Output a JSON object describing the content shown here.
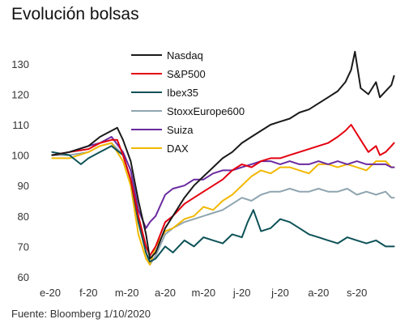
{
  "header": {
    "title": "Evolución bolsas"
  },
  "footer": {
    "source": "Fuente: Bloomberg 1/10/2020"
  },
  "chart_data": {
    "type": "line",
    "title": "Evolución bolsas",
    "xlabel": "",
    "ylabel": "",
    "ylim": [
      60,
      135
    ],
    "yticks": [
      60,
      70,
      80,
      90,
      100,
      110,
      120,
      130
    ],
    "x_tick_labels": [
      "e-20",
      "f-20",
      "m-20",
      "a-20",
      "m-20",
      "j-20",
      "j-20",
      "a-20",
      "s-20"
    ],
    "x_tick_months": [
      0,
      1,
      2,
      3,
      4,
      5,
      6,
      7,
      8
    ],
    "x_range_months": [
      0,
      9
    ],
    "grid": false,
    "legend_position": "top-center",
    "series": [
      {
        "name": "Nasdaq",
        "color": "#1a1a1a",
        "x": [
          0.05,
          0.5,
          1.0,
          1.3,
          1.6,
          1.75,
          1.9,
          2.1,
          2.3,
          2.5,
          2.6,
          2.75,
          3.0,
          3.2,
          3.5,
          3.75,
          4.0,
          4.25,
          4.5,
          4.75,
          5.0,
          5.25,
          5.5,
          5.75,
          6.0,
          6.25,
          6.5,
          6.75,
          7.0,
          7.25,
          7.5,
          7.7,
          7.85,
          7.95,
          8.1,
          8.3,
          8.5,
          8.6,
          8.75,
          8.9,
          8.97
        ],
        "y": [
          100,
          101,
          103,
          106,
          108,
          109,
          105,
          98,
          85,
          74,
          66,
          68,
          76,
          80,
          86,
          90,
          93,
          96,
          99,
          101,
          104,
          106,
          108,
          110,
          111,
          112,
          114,
          115,
          117,
          119,
          121,
          124,
          128,
          134,
          122,
          120,
          124,
          119,
          121,
          123,
          126
        ]
      },
      {
        "name": "S&P500",
        "color": "#e3000f",
        "x": [
          0.05,
          0.5,
          1.0,
          1.3,
          1.6,
          1.75,
          1.9,
          2.1,
          2.3,
          2.5,
          2.6,
          2.75,
          3.0,
          3.2,
          3.5,
          3.75,
          4.0,
          4.25,
          4.5,
          4.75,
          5.0,
          5.25,
          5.5,
          5.75,
          6.0,
          6.25,
          6.5,
          6.75,
          7.0,
          7.25,
          7.5,
          7.7,
          7.85,
          7.95,
          8.1,
          8.3,
          8.5,
          8.6,
          8.75,
          8.9,
          8.97
        ],
        "y": [
          100,
          101,
          102,
          104,
          105,
          105,
          100,
          92,
          80,
          70,
          67,
          70,
          78,
          80,
          84,
          86,
          88,
          90,
          92,
          95,
          97,
          96,
          98,
          99,
          99,
          100,
          101,
          102,
          103,
          104,
          106,
          108,
          110,
          108,
          105,
          101,
          103,
          100,
          101,
          103,
          104
        ]
      },
      {
        "name": "Ibex35",
        "color": "#0d5257",
        "x": [
          0.05,
          0.5,
          0.8,
          1.0,
          1.3,
          1.6,
          1.9,
          2.1,
          2.3,
          2.5,
          2.6,
          2.75,
          3.0,
          3.2,
          3.5,
          3.75,
          4.0,
          4.25,
          4.5,
          4.75,
          5.0,
          5.15,
          5.3,
          5.5,
          5.75,
          6.0,
          6.25,
          6.5,
          6.75,
          7.0,
          7.25,
          7.5,
          7.75,
          8.0,
          8.25,
          8.5,
          8.75,
          8.9,
          8.97
        ],
        "y": [
          101,
          100,
          97,
          99,
          101,
          103,
          100,
          92,
          78,
          68,
          65,
          66,
          70,
          68,
          72,
          70,
          73,
          72,
          71,
          74,
          73,
          78,
          82,
          75,
          76,
          79,
          78,
          76,
          74,
          73,
          72,
          71,
          73,
          72,
          71,
          72,
          70,
          70,
          70
        ]
      },
      {
        "name": "StoxxEurope600",
        "color": "#8fa5b0",
        "x": [
          0.05,
          0.5,
          1.0,
          1.3,
          1.6,
          1.9,
          2.1,
          2.3,
          2.5,
          2.6,
          2.75,
          3.0,
          3.2,
          3.5,
          3.75,
          4.0,
          4.25,
          4.5,
          4.75,
          5.0,
          5.25,
          5.5,
          5.75,
          6.0,
          6.25,
          6.5,
          6.75,
          7.0,
          7.25,
          7.5,
          7.75,
          8.0,
          8.25,
          8.5,
          8.75,
          8.9,
          8.97
        ],
        "y": [
          100,
          100,
          101,
          103,
          104,
          100,
          92,
          78,
          68,
          64,
          67,
          74,
          76,
          78,
          79,
          80,
          81,
          82,
          84,
          86,
          85,
          87,
          88,
          88,
          89,
          88,
          88,
          89,
          88,
          88,
          89,
          87,
          88,
          87,
          88,
          86,
          86
        ]
      },
      {
        "name": "Suiza",
        "color": "#6a2aa0",
        "x": [
          0.05,
          0.5,
          1.0,
          1.3,
          1.6,
          1.9,
          2.1,
          2.3,
          2.5,
          2.6,
          2.75,
          3.0,
          3.2,
          3.5,
          3.75,
          4.0,
          4.25,
          4.5,
          4.75,
          5.0,
          5.25,
          5.5,
          5.75,
          6.0,
          6.25,
          6.5,
          6.75,
          7.0,
          7.25,
          7.5,
          7.75,
          8.0,
          8.25,
          8.5,
          8.75,
          8.9,
          8.97
        ],
        "y": [
          100,
          101,
          103,
          104,
          106,
          101,
          95,
          82,
          76,
          78,
          80,
          87,
          89,
          90,
          92,
          92,
          94,
          95,
          95,
          96,
          97,
          98,
          98,
          97,
          98,
          97,
          97,
          98,
          97,
          98,
          97,
          98,
          97,
          97,
          97,
          96,
          96
        ]
      },
      {
        "name": "DAX",
        "color": "#f2b800",
        "x": [
          0.05,
          0.5,
          1.0,
          1.3,
          1.6,
          1.9,
          2.1,
          2.3,
          2.5,
          2.6,
          2.75,
          3.0,
          3.2,
          3.5,
          3.75,
          4.0,
          4.25,
          4.5,
          4.75,
          5.0,
          5.25,
          5.5,
          5.75,
          6.0,
          6.25,
          6.5,
          6.75,
          7.0,
          7.25,
          7.5,
          7.75,
          8.0,
          8.25,
          8.5,
          8.75,
          8.9,
          8.97
        ],
        "y": [
          99,
          99,
          101,
          103,
          104,
          98,
          90,
          74,
          66,
          64,
          70,
          75,
          76,
          79,
          80,
          83,
          82,
          85,
          87,
          90,
          93,
          95,
          94,
          96,
          96,
          95,
          94,
          97,
          97,
          96,
          97,
          96,
          95,
          98,
          98,
          96,
          96
        ]
      }
    ]
  }
}
